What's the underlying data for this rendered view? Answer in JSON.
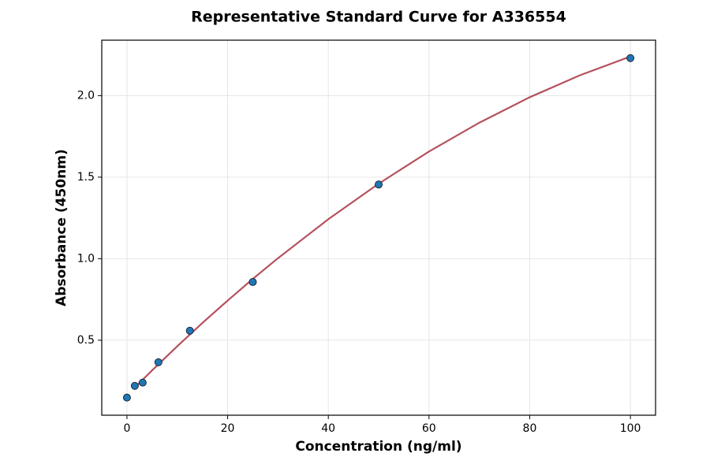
{
  "chart_data": {
    "type": "scatter",
    "title": "Representative Standard Curve for A336554",
    "x_label": "Concentration (ng/ml)",
    "y_label": "Absorbance (450nm)",
    "xlim": [
      -5,
      105
    ],
    "ylim": [
      0.04,
      2.34
    ],
    "xticks": [
      0,
      20,
      40,
      60,
      80,
      100
    ],
    "yticks": [
      0.5,
      {
        "value": 1,
        "label": "1.0"
      },
      1.5,
      {
        "value": 2,
        "label": "2.0"
      }
    ],
    "grid": true,
    "points": {
      "color": "#1f77b4",
      "x": [
        0,
        1.5625,
        3.125,
        6.25,
        12.5,
        25,
        50,
        100
      ],
      "values": [
        0.148,
        0.22,
        0.24,
        0.365,
        0.558,
        0.857,
        1.455,
        2.23
      ]
    },
    "curve": {
      "color": "#b5525f",
      "x": [
        1.5625,
        5,
        10,
        15,
        20,
        25,
        30,
        40,
        50,
        60,
        70,
        80,
        90,
        100
      ],
      "values": [
        0.21,
        0.315,
        0.463,
        0.606,
        0.743,
        0.876,
        1.003,
        1.242,
        1.46,
        1.657,
        1.834,
        1.99,
        2.125,
        2.24
      ]
    }
  }
}
